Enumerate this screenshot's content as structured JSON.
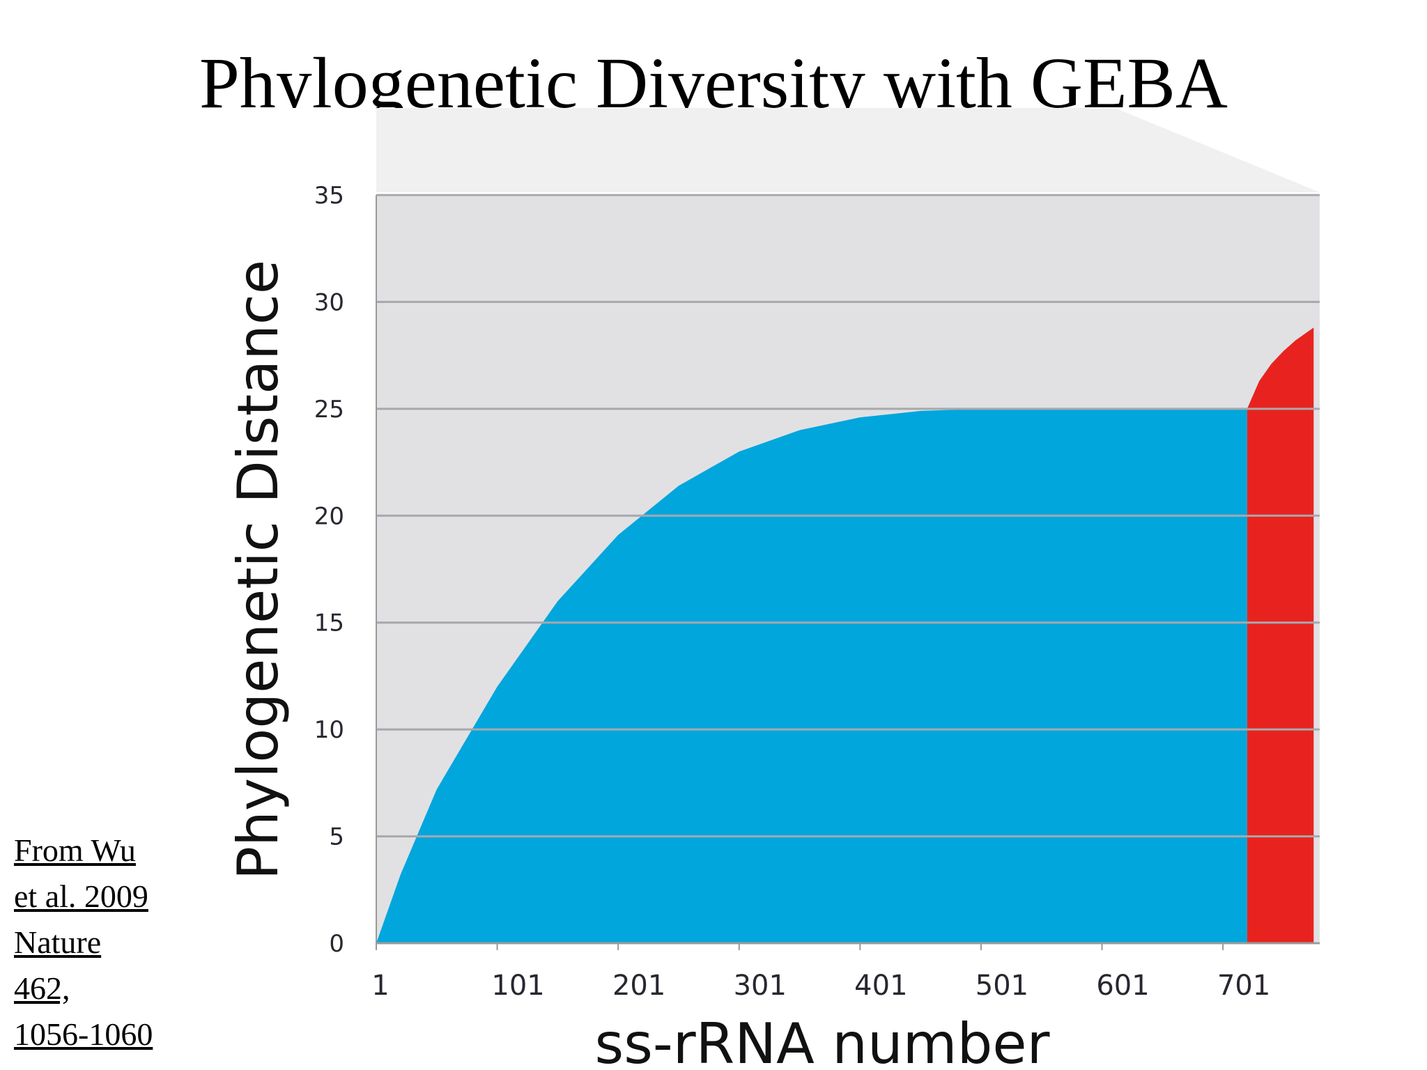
{
  "slide": {
    "title": "Phylogenetic Diversity with GEBA",
    "citation": [
      "From Wu",
      "et al. 2009",
      "Nature",
      "462,",
      "1056-1060"
    ]
  },
  "chart_data": {
    "type": "area",
    "title": "",
    "xlabel": "ss-rRNA number",
    "ylabel": "Phylogenetic Distance",
    "xlim": [
      1,
      781
    ],
    "ylim": [
      0,
      35
    ],
    "x_ticks": [
      "1",
      "101",
      "201",
      "301",
      "401",
      "501",
      "601",
      "701"
    ],
    "y_ticks": [
      "0",
      "5",
      "10",
      "15",
      "20",
      "25",
      "30",
      "35"
    ],
    "grid": true,
    "background_color": "#e1e1e4",
    "series": [
      {
        "color": "#00a6dc",
        "x": [
          1,
          21,
          51,
          101,
          151,
          201,
          251,
          301,
          351,
          401,
          451,
          501,
          551,
          601,
          651,
          721
        ],
        "y": [
          0,
          3.2,
          7.2,
          12.0,
          16.0,
          19.1,
          21.4,
          23.0,
          24.0,
          24.6,
          24.9,
          25.0,
          25.0,
          25.0,
          25.0,
          25.0
        ]
      },
      {
        "color": "#e8231f",
        "x": [
          721,
          731,
          741,
          751,
          761,
          771,
          776
        ],
        "y": [
          25.0,
          26.3,
          27.1,
          27.7,
          28.2,
          28.6,
          28.8
        ]
      }
    ]
  }
}
